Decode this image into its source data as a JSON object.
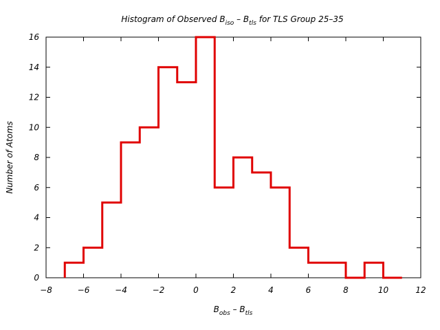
{
  "chart_data": {
    "type": "bar",
    "title": {
      "main": "Histogram of Observed B",
      "sub1": "iso",
      "mid": " – B",
      "sub2": "tls",
      "tail": "for TLS Group 25–35"
    },
    "xlabel": {
      "main": "B",
      "sub1": "obs",
      "mid": " – B",
      "sub2": "tls"
    },
    "ylabel": "Number of Atoms",
    "xlim": [
      -8,
      12
    ],
    "ylim": [
      0,
      16
    ],
    "xticks": [
      "−8",
      "−6",
      "−4",
      "−2",
      "0",
      "2",
      "4",
      "6",
      "8",
      "10",
      "12"
    ],
    "yticks": [
      "0",
      "2",
      "4",
      "6",
      "8",
      "10",
      "12",
      "14",
      "16"
    ],
    "bin_width": 1.0,
    "bin_starts": [
      -7,
      -6,
      -5,
      -4,
      -3,
      -2,
      -1,
      0,
      1,
      2,
      3,
      4,
      5,
      6,
      7,
      8,
      9,
      10
    ],
    "values": [
      1,
      2,
      5,
      9,
      10,
      14,
      13,
      16,
      6,
      8,
      7,
      6,
      2,
      1,
      1,
      0,
      1,
      0
    ],
    "line_color": "#e00000",
    "grid": false,
    "legend": "none"
  }
}
